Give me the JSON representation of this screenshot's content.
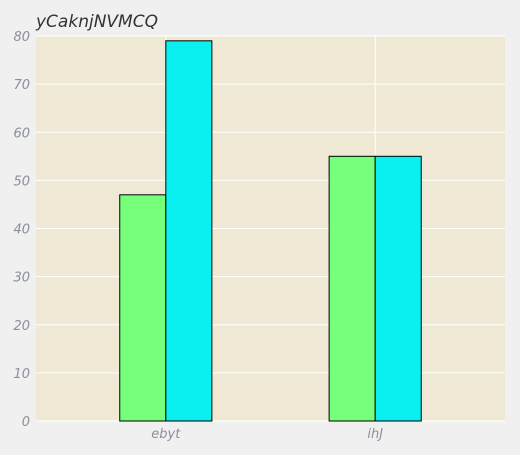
{
  "chart_data": {
    "type": "bar",
    "title": "yCaknjNVMCQ",
    "xlabel": "",
    "ylabel": "",
    "categories": [
      "ebyt",
      "ihJ"
    ],
    "series": [
      {
        "values": [
          47,
          55
        ]
      },
      {
        "values": [
          79,
          55
        ]
      }
    ],
    "ylim": [
      0,
      80
    ],
    "yticks": [
      "0",
      "10",
      "20",
      "30",
      "40",
      "50",
      "60",
      "70",
      "80"
    ],
    "grid": true,
    "legend": "none"
  },
  "colors": {
    "figure_bg": "#f0f0f0",
    "plot_bg": "#efe8d5",
    "grid": "#ffffff",
    "series": [
      "#76ff7b",
      "#0af0f0"
    ],
    "bar_edge": "#000000"
  }
}
